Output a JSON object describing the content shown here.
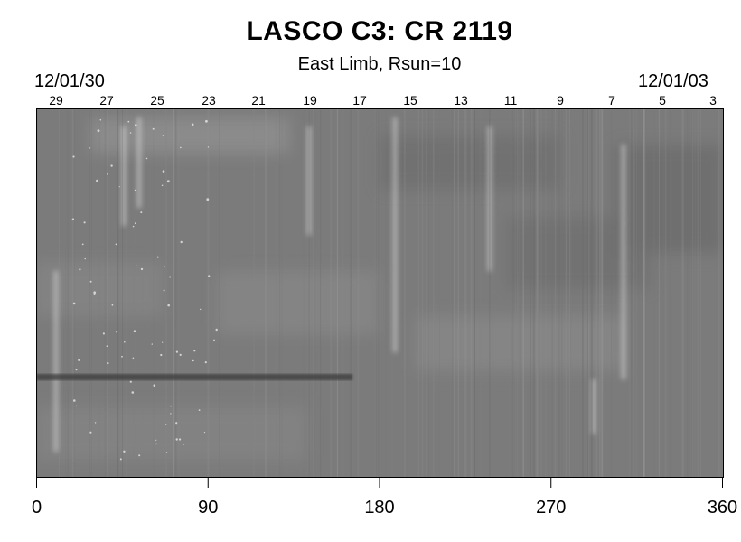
{
  "title": "LASCO C3: CR 2119",
  "subtitle": "East Limb, Rsun=10",
  "date_left": "12/01/30",
  "date_right": "12/01/03",
  "top_axis": {
    "day_labels": [
      "29",
      "27",
      "25",
      "23",
      "21",
      "19",
      "17",
      "15",
      "13",
      "11",
      "9",
      "7",
      "5",
      "3"
    ]
  },
  "bottom_axis": {
    "ticks": [
      "0",
      "90",
      "180",
      "270",
      "360"
    ]
  },
  "colors": {
    "background": "#ffffff",
    "plot_base": "#7b7b7b",
    "axis": "#000000"
  }
}
